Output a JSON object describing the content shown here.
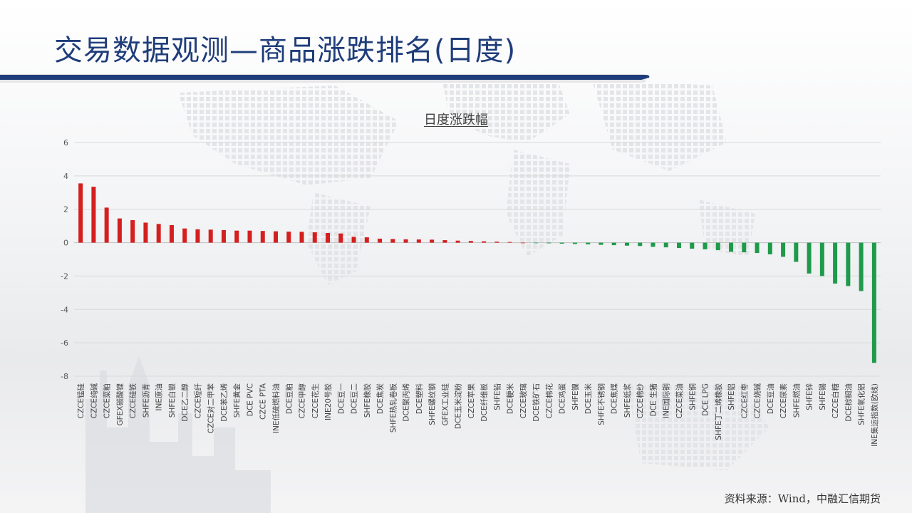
{
  "slide": {
    "title": "交易数据观测—商品涨跌排名(日度)",
    "source": "资料来源：Wind，中融汇信期货"
  },
  "colors": {
    "positive": "#d41f1f",
    "negative": "#1f9a4b",
    "title": "#1f3d7a",
    "bar_dark": "#1f3d7a"
  },
  "chart_data": {
    "type": "bar",
    "title": "日度涨跌幅",
    "xlabel": "",
    "ylabel": "",
    "ylim": [
      -8,
      6
    ],
    "yticks": [
      6,
      4,
      2,
      0,
      -2,
      -4,
      -6,
      -8
    ],
    "grid": true,
    "legend": "none",
    "categories": [
      "CZCE锰硅",
      "CZCE纯碱",
      "CZCE菜粕",
      "GFEX碳酸锂",
      "CZCE硅铁",
      "SHFE沥青",
      "INE原油",
      "SHFE白银",
      "DCE乙二醇",
      "CZCE短纤",
      "CZCE对二甲苯",
      "DCE苯乙烯",
      "SHFE黄金",
      "DCE PVC",
      "CZCE PTA",
      "INE低硫燃料油",
      "DCE豆粕",
      "CZCE甲醇",
      "CZCE花生",
      "INE20号胶",
      "DCE豆一",
      "DCE豆二",
      "SHFE橡胶",
      "DCE焦炭",
      "SHFE热轧卷板",
      "DCE聚丙烯",
      "DCE塑料",
      "SHFE螺纹钢",
      "GFEX工业硅",
      "DCE玉米淀粉",
      "CZCE苹果",
      "DCE纤维板",
      "SHFE铅",
      "DCE粳米",
      "CZCE玻璃",
      "DCE铁矿石",
      "CZCE棉花",
      "DCE鸡蛋",
      "SHFE镍",
      "DCE玉米",
      "SHFE不锈钢",
      "DCE焦煤",
      "SHFE纸浆",
      "CZCE棉纱",
      "DCE 生猪",
      "INE国际铜",
      "CZCE菜油",
      "SHFE铜",
      "DCE LPG",
      "SHFE丁二烯橡胶",
      "SHFE铝",
      "CZCE红枣",
      "CZCE烧碱",
      "DCE豆油",
      "CZCE尿素",
      "SHFE燃油",
      "SHFE锌",
      "SHFE锡",
      "CZCE白糖",
      "DCE棕榈油",
      "SHFE氧化铝",
      "INE集运指数(欧线)"
    ],
    "values": [
      3.55,
      3.35,
      2.1,
      1.45,
      1.35,
      1.2,
      1.12,
      1.05,
      0.85,
      0.8,
      0.78,
      0.75,
      0.72,
      0.72,
      0.7,
      0.68,
      0.66,
      0.65,
      0.62,
      0.58,
      0.55,
      0.35,
      0.32,
      0.24,
      0.22,
      0.2,
      0.19,
      0.18,
      0.15,
      0.12,
      0.1,
      0.08,
      0.06,
      0.04,
      0.0,
      -0.02,
      -0.04,
      -0.06,
      -0.08,
      -0.1,
      -0.13,
      -0.15,
      -0.18,
      -0.2,
      -0.25,
      -0.28,
      -0.32,
      -0.36,
      -0.4,
      -0.45,
      -0.55,
      -0.58,
      -0.62,
      -0.7,
      -0.85,
      -1.15,
      -1.85,
      -2.0,
      -2.45,
      -2.6,
      -2.9,
      -7.2
    ]
  }
}
